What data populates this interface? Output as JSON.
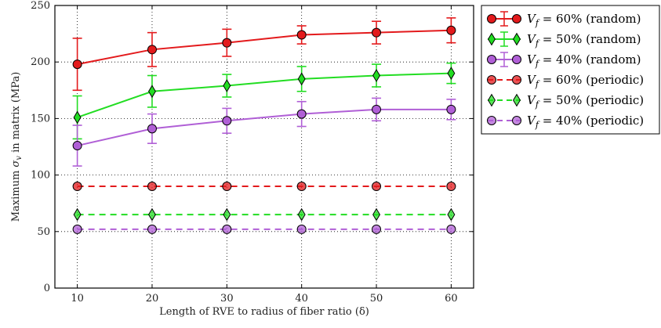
{
  "chart_data": {
    "type": "line",
    "title": "",
    "xlabel": "Length of RVE to radius of fiber ratio (δ)",
    "ylabel": "Maximum σv in matrix (MPa)",
    "xlim": [
      7,
      63
    ],
    "ylim": [
      0,
      250
    ],
    "xticks": [
      10,
      20,
      30,
      40,
      50,
      60
    ],
    "yticks": [
      0,
      50,
      100,
      150,
      200,
      250
    ],
    "grid": true,
    "legend_position": "outside-right",
    "x": [
      10,
      20,
      30,
      40,
      50,
      60
    ],
    "series": [
      {
        "name": "Vf = 60% (random)",
        "legend_math": "V_f = 60%",
        "legend_suffix": " (random)",
        "color": "#e31a1c",
        "marker": "circle",
        "line": "solid",
        "values": [
          198,
          211,
          217,
          224,
          226,
          228
        ],
        "errors": [
          23,
          15,
          12,
          8,
          10,
          11
        ]
      },
      {
        "name": "Vf = 50% (random)",
        "legend_math": "V_f = 50%",
        "legend_suffix": " (random)",
        "color": "#22dd22",
        "marker": "diamond",
        "line": "solid",
        "values": [
          151,
          174,
          179,
          185,
          188,
          190
        ],
        "errors": [
          19,
          14,
          10,
          11,
          10,
          9
        ]
      },
      {
        "name": "Vf = 40% (random)",
        "legend_math": "V_f = 40%",
        "legend_suffix": " (random)",
        "color": "#b05fd6",
        "marker": "circle",
        "line": "solid",
        "values": [
          126,
          141,
          148,
          154,
          158,
          158
        ],
        "errors": [
          18,
          13,
          11,
          11,
          10,
          9
        ]
      },
      {
        "name": "Vf = 60% (periodic)",
        "legend_math": "V_f = 60%",
        "legend_suffix": " (periodic)",
        "color": "#e31a1c",
        "marker": "circle",
        "line": "dashed",
        "values": [
          90,
          90,
          90,
          90,
          90,
          90
        ],
        "errors": [
          0,
          0,
          0,
          0,
          0,
          0
        ]
      },
      {
        "name": "Vf = 50% (periodic)",
        "legend_math": "V_f = 50%",
        "legend_suffix": " (periodic)",
        "color": "#22dd22",
        "marker": "diamond",
        "line": "dashed",
        "values": [
          65,
          65,
          65,
          65,
          65,
          65
        ],
        "errors": [
          0,
          0,
          0,
          0,
          0,
          0
        ]
      },
      {
        "name": "Vf = 40% (periodic)",
        "legend_math": "V_f = 40%",
        "legend_suffix": " (periodic)",
        "color": "#b05fd6",
        "marker": "circle",
        "line": "dashed",
        "values": [
          52,
          52,
          52,
          52,
          52,
          52
        ],
        "errors": [
          0,
          0,
          0,
          0,
          0,
          0
        ]
      }
    ]
  }
}
